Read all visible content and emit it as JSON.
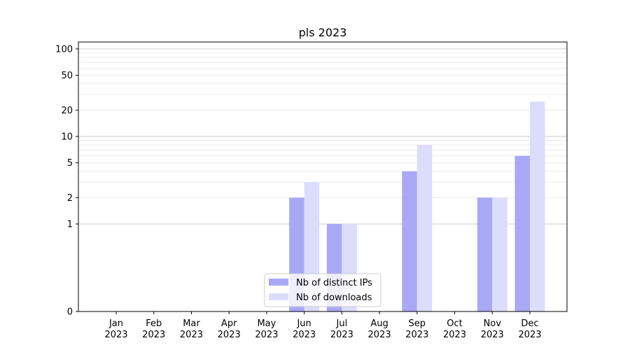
{
  "chart_data": {
    "type": "bar",
    "title": "pls 2023",
    "xlabel": "",
    "ylabel": "",
    "yscale": "symlog",
    "ylim": [
      0,
      120
    ],
    "yticks": [
      0,
      1,
      2,
      5,
      10,
      20,
      50,
      100
    ],
    "grid": "horizontal",
    "legend_position": "bottom-center",
    "categories": [
      [
        "Jan",
        "2023"
      ],
      [
        "Feb",
        "2023"
      ],
      [
        "Mar",
        "2023"
      ],
      [
        "Apr",
        "2023"
      ],
      [
        "May",
        "2023"
      ],
      [
        "Jun",
        "2023"
      ],
      [
        "Jul",
        "2023"
      ],
      [
        "Aug",
        "2023"
      ],
      [
        "Sep",
        "2023"
      ],
      [
        "Oct",
        "2023"
      ],
      [
        "Nov",
        "2023"
      ],
      [
        "Dec",
        "2023"
      ]
    ],
    "series": [
      {
        "name": "Nb of distinct IPs",
        "color": "#a8a8f5",
        "values": [
          0,
          0,
          0,
          0,
          0,
          2,
          1,
          0,
          4,
          0,
          2,
          6
        ]
      },
      {
        "name": "Nb of downloads",
        "color": "#dcdcfb",
        "values": [
          0,
          0,
          0,
          0,
          0,
          3,
          1,
          0,
          8,
          0,
          2,
          25
        ]
      }
    ]
  }
}
